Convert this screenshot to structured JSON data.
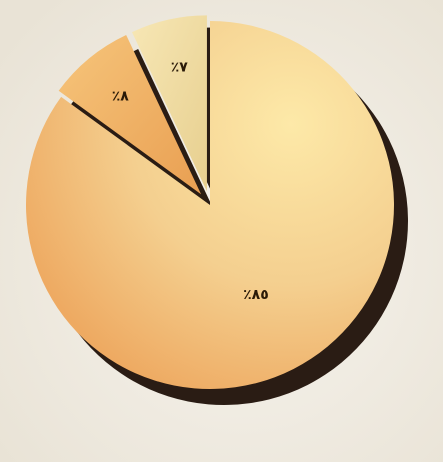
{
  "chart_data": {
    "type": "pie",
    "categories": [
      "٨٥٪",
      "٨٪",
      "٧٪"
    ],
    "values": [
      85,
      8,
      7
    ],
    "labels": [
      "٪٨٥",
      "٪٨",
      "٪٧"
    ],
    "colors": [
      "#f2c58a",
      "#f0b56a",
      "#eedc9d"
    ],
    "shadow_color": "#1f1108",
    "background": "#f3efe6"
  }
}
